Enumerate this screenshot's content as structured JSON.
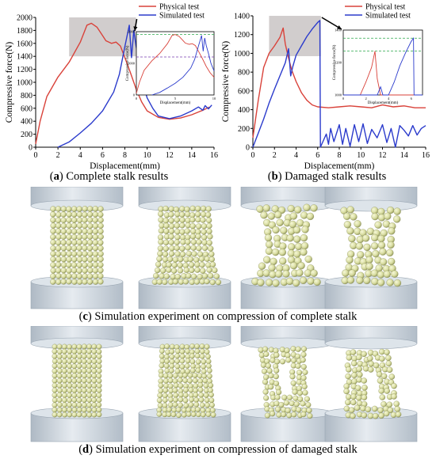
{
  "chart_data": [
    {
      "id": "a",
      "type": "line",
      "xlabel": "Displacement(mm)",
      "ylabel": "Compressive force(N)",
      "xlim": [
        0,
        16
      ],
      "ylim": [
        0,
        2000
      ],
      "xticks": [
        0,
        2,
        4,
        6,
        8,
        10,
        12,
        14,
        16
      ],
      "yticks": [
        0,
        200,
        400,
        600,
        800,
        1000,
        1200,
        1400,
        1600,
        1800,
        2000
      ],
      "legend_position": "top-right",
      "legend": [
        "Physical test",
        "Simulated test"
      ],
      "series": [
        {
          "name": "Physical test",
          "color": "#d9423a",
          "x": [
            0,
            0.4,
            1.0,
            2.0,
            3.0,
            4.0,
            4.6,
            5.0,
            5.5,
            6.0,
            6.3,
            6.8,
            7.2,
            7.6,
            8.0,
            8.5,
            9.0,
            9.5,
            10.0,
            11.0,
            12.0,
            13.0,
            14.0,
            15.0,
            15.6
          ],
          "y": [
            50,
            400,
            780,
            1080,
            1310,
            1620,
            1880,
            1910,
            1850,
            1720,
            1640,
            1600,
            1620,
            1560,
            1380,
            1150,
            900,
            700,
            560,
            460,
            430,
            450,
            500,
            570,
            620
          ]
        },
        {
          "name": "Simulated test",
          "color": "#2b3bcc",
          "x": [
            2.0,
            3.0,
            4.0,
            5.0,
            6.0,
            7.0,
            7.5,
            8.0,
            8.4,
            8.6,
            8.8,
            9.0,
            9.3,
            9.6,
            10.0,
            10.5,
            11.0,
            12.0,
            13.0,
            14.0,
            14.6,
            15.0,
            15.2,
            15.5,
            15.8
          ],
          "y": [
            0,
            80,
            220,
            370,
            560,
            850,
            1120,
            1550,
            1880,
            1380,
            1800,
            1560,
            1300,
            1000,
            760,
            600,
            480,
            440,
            480,
            560,
            620,
            570,
            640,
            590,
            650
          ]
        }
      ],
      "inset": {
        "xlabel": "Displacement(mm)",
        "ylabel": "Compressive force(N)",
        "xlim": [
          0,
          10
        ],
        "ylim": [
          0,
          2000
        ],
        "xticks": [
          0,
          5,
          10
        ],
        "yticks": [
          0,
          1000,
          2000
        ],
        "reference_lines": [
          {
            "color": "#2aa84a",
            "y": 1910
          },
          {
            "color": "#7a3fb0",
            "y": 1200
          }
        ]
      }
    },
    {
      "id": "b",
      "type": "line",
      "xlabel": "Displacement(mm)",
      "ylabel": "Compressive force(N)",
      "xlim": [
        0,
        16
      ],
      "ylim": [
        0,
        1400
      ],
      "xticks": [
        0,
        2,
        4,
        6,
        8,
        10,
        12,
        14,
        16
      ],
      "yticks": [
        0,
        200,
        400,
        600,
        800,
        1000,
        1200,
        1400
      ],
      "legend_position": "top-right",
      "legend": [
        "Physical test",
        "Simulated test"
      ],
      "series": [
        {
          "name": "Physical test",
          "color": "#d9423a",
          "x": [
            0,
            0.5,
            1.0,
            1.5,
            2.0,
            2.5,
            2.8,
            3.0,
            3.3,
            3.6,
            4.0,
            4.5,
            5.0,
            5.5,
            6.0,
            7.0,
            8.0,
            9.0,
            10.0,
            11.0,
            12.0,
            13.0,
            14.0,
            15.0,
            16.0
          ],
          "y": [
            100,
            500,
            850,
            1000,
            1080,
            1170,
            1270,
            1100,
            950,
            820,
            700,
            580,
            500,
            450,
            430,
            420,
            430,
            440,
            430,
            420,
            450,
            430,
            440,
            420,
            420
          ]
        },
        {
          "name": "Simulated test",
          "color": "#2b3bcc",
          "x": [
            0,
            0.5,
            1.0,
            1.5,
            2.0,
            2.5,
            3.0,
            3.3,
            3.5,
            3.7,
            4.0,
            4.5,
            5.0,
            5.5,
            6.0,
            6.2,
            6.25,
            6.8,
            7.0,
            7.2,
            7.5,
            8.0,
            8.3,
            8.6,
            9.0,
            9.4,
            9.8,
            10.2,
            10.6,
            11.0,
            11.5,
            12.0,
            12.4,
            12.8,
            13.2,
            13.6,
            14.0,
            14.4,
            14.8,
            15.2,
            15.6,
            16.0
          ],
          "y": [
            0,
            150,
            300,
            470,
            620,
            760,
            900,
            1050,
            760,
            860,
            980,
            1080,
            1180,
            1260,
            1330,
            1350,
            0,
            140,
            30,
            200,
            60,
            240,
            30,
            200,
            10,
            240,
            60,
            250,
            40,
            190,
            100,
            240,
            50,
            200,
            0,
            230,
            180,
            120,
            230,
            130,
            200,
            230
          ]
        }
      ],
      "inset": {
        "xlabel": "Displacement(mm)",
        "ylabel": "Compressive force(N)",
        "xlim": [
          0,
          7
        ],
        "ylim": [
          1000,
          1400
        ],
        "xticks": [
          0,
          2,
          4,
          6
        ],
        "yticks": [
          1000,
          1200,
          1400
        ],
        "reference_lines": [
          {
            "color": "#2aa84a",
            "y": 1350
          },
          {
            "color": "#2aa84a",
            "y": 1270
          }
        ]
      }
    }
  ],
  "captions": {
    "a_letter": "a",
    "a_text": "Complete stalk results",
    "b_letter": "b",
    "b_text": "Damaged stalk results",
    "c_letter": "c",
    "c_text": "Simulation experiment on compression of complete stalk",
    "d_letter": "d",
    "d_text": "Simulation experiment on compression of damaged stalk"
  },
  "colors": {
    "physical": "#d9423a",
    "simulated": "#2b3bcc",
    "highlight_box": "#c9c4c4",
    "platen": "#c8d2dc",
    "particle": "#d8dca0"
  }
}
